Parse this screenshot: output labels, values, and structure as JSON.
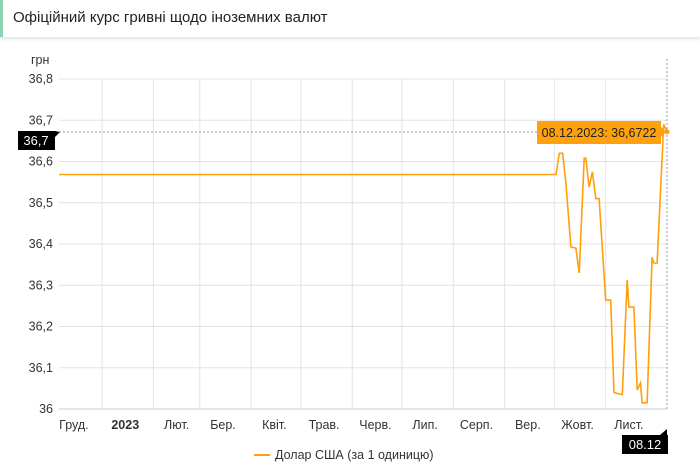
{
  "header": {
    "title": "Офіційний курс гривні щодо іноземних валют"
  },
  "chart_data": {
    "type": "line",
    "ylabel": "грн",
    "ylim": [
      36,
      36.8
    ],
    "xlim": [
      "2022-12-06",
      "2023-12-08"
    ],
    "y_ticks": [
      "36",
      "36,1",
      "36,2",
      "36,3",
      "36,4",
      "36,5",
      "36,6",
      "36,7",
      "36,8"
    ],
    "x_ticks": [
      {
        "label": "Груд.",
        "date": "2022-12-15",
        "bold": false
      },
      {
        "label": "2023",
        "date": "2023-01-15",
        "bold": true
      },
      {
        "label": "Лют.",
        "date": "2023-02-15",
        "bold": false
      },
      {
        "label": "Бер.",
        "date": "2023-03-15",
        "bold": false
      },
      {
        "label": "Квіт.",
        "date": "2023-04-15",
        "bold": false
      },
      {
        "label": "Трав.",
        "date": "2023-05-15",
        "bold": false
      },
      {
        "label": "Черв.",
        "date": "2023-06-15",
        "bold": false
      },
      {
        "label": "Лип.",
        "date": "2023-07-15",
        "bold": false
      },
      {
        "label": "Серп.",
        "date": "2023-08-15",
        "bold": false
      },
      {
        "label": "Вер.",
        "date": "2023-09-15",
        "bold": false
      },
      {
        "label": "Жовт.",
        "date": "2023-10-15",
        "bold": false
      },
      {
        "label": "Лист.",
        "date": "2023-11-15",
        "bold": false
      }
    ],
    "grid": true,
    "legend_position": "bottom",
    "series": [
      {
        "name": "Долар США (за 1 одиницю)",
        "color": "#ff9f0a",
        "points": [
          [
            "2022-12-06",
            36.5686
          ],
          [
            "2023-10-02",
            36.5686
          ],
          [
            "2023-10-04",
            36.62
          ],
          [
            "2023-10-06",
            36.62
          ],
          [
            "2023-10-08",
            36.548
          ],
          [
            "2023-10-11",
            36.393
          ],
          [
            "2023-10-14",
            36.39
          ],
          [
            "2023-10-16",
            36.33
          ],
          [
            "2023-10-19",
            36.608
          ],
          [
            "2023-10-20",
            36.608
          ],
          [
            "2023-10-22",
            36.538
          ],
          [
            "2023-10-24",
            36.575
          ],
          [
            "2023-10-26",
            36.51
          ],
          [
            "2023-10-28",
            36.51
          ],
          [
            "2023-11-01",
            36.264
          ],
          [
            "2023-11-04",
            36.264
          ],
          [
            "2023-11-06",
            36.04
          ],
          [
            "2023-11-11",
            36.035
          ],
          [
            "2023-11-14",
            36.313
          ],
          [
            "2023-11-15",
            36.247
          ],
          [
            "2023-11-18",
            36.247
          ],
          [
            "2023-11-20",
            36.046
          ],
          [
            "2023-11-22",
            36.063
          ],
          [
            "2023-11-23",
            36.015
          ],
          [
            "2023-11-26",
            36.015
          ],
          [
            "2023-11-29",
            36.368
          ],
          [
            "2023-11-30",
            36.354
          ],
          [
            "2023-12-02",
            36.354
          ],
          [
            "2023-12-06",
            36.69
          ],
          [
            "2023-12-08",
            36.6722
          ]
        ]
      }
    ],
    "crosshair": {
      "y_label": "36,7",
      "x_label": "08.12",
      "tooltip": "08.12.2023: 36,6722"
    }
  }
}
